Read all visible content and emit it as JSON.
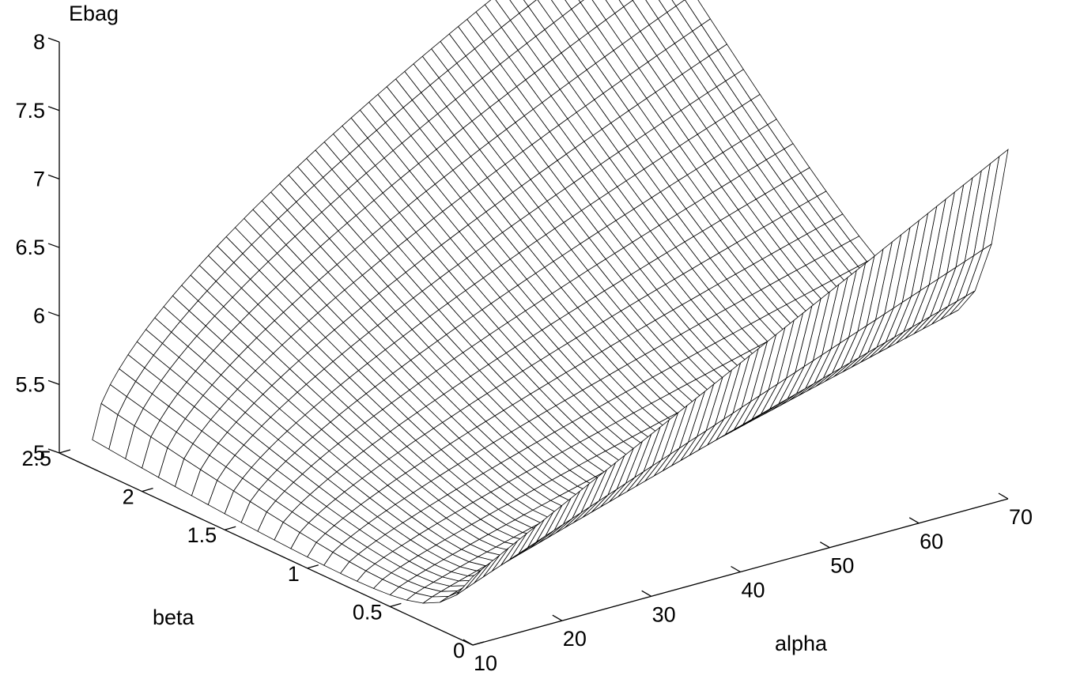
{
  "chart_data": {
    "type": "surface-mesh",
    "z_axis": {
      "label": "Ebag",
      "range": [
        5,
        8
      ],
      "ticks": [
        5,
        5.5,
        6,
        6.5,
        7,
        7.5,
        8
      ],
      "tick_labels": [
        "5",
        "5.5",
        "6",
        "6.5",
        "7",
        "7.5",
        "8"
      ]
    },
    "y_axis": {
      "label": "beta",
      "range": [
        0,
        2.5
      ],
      "ticks": [
        0,
        0.5,
        1,
        1.5,
        2,
        2.5
      ],
      "tick_labels": [
        "0",
        "0.5",
        "1",
        "1.5",
        "2",
        "2.5"
      ]
    },
    "x_axis": {
      "label": "alpha",
      "range": [
        10,
        70
      ],
      "ticks": [
        10,
        20,
        30,
        40,
        50,
        60,
        70
      ],
      "tick_labels": [
        "10",
        "20",
        "30",
        "40",
        "50",
        "60",
        "70"
      ]
    },
    "mesh": {
      "alpha_range": [
        10,
        70
      ],
      "beta_range": [
        0,
        2.3
      ],
      "alpha_steps": 61,
      "beta_steps": 24,
      "surface_samples": [
        {
          "alpha": 10,
          "beta": 2.3,
          "ebag": 5.0
        },
        {
          "alpha": 40,
          "beta": 2.3,
          "ebag": 7.0
        },
        {
          "alpha": 10,
          "beta": 0.6,
          "ebag": 4.7
        },
        {
          "alpha": 10,
          "beta": 0.0,
          "ebag": 5.5
        },
        {
          "alpha": 40,
          "beta": 0.0,
          "ebag": 6.35
        },
        {
          "alpha": 70,
          "beta": 0.0,
          "ebag": 7.5
        }
      ],
      "line_color": "#000000",
      "face_color": "#ffffff"
    },
    "grid": false
  }
}
